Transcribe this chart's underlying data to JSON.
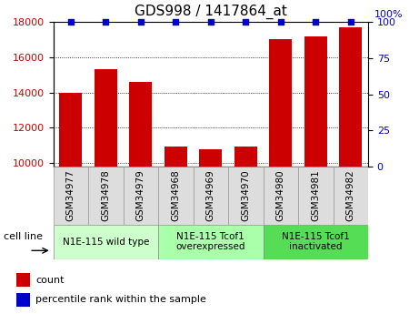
{
  "title": "GDS998 / 1417864_at",
  "samples": [
    "GSM34977",
    "GSM34978",
    "GSM34979",
    "GSM34968",
    "GSM34969",
    "GSM34970",
    "GSM34980",
    "GSM34981",
    "GSM34982"
  ],
  "counts": [
    14000,
    15300,
    14600,
    10950,
    10750,
    10950,
    17050,
    17200,
    17700
  ],
  "percentiles": [
    100,
    100,
    100,
    100,
    100,
    100,
    100,
    100,
    100
  ],
  "ylim_left": [
    9800,
    18000
  ],
  "ylim_right": [
    0,
    100
  ],
  "yticks_left": [
    10000,
    12000,
    14000,
    16000,
    18000
  ],
  "yticks_right": [
    0,
    25,
    50,
    75,
    100
  ],
  "bar_color": "#cc0000",
  "percentile_color": "#0000cc",
  "groups": [
    {
      "label": "N1E-115 wild type",
      "start": 0,
      "end": 3,
      "color": "#ccffcc"
    },
    {
      "label": "N1E-115 Tcof1\noverexpressed",
      "start": 3,
      "end": 6,
      "color": "#aaffaa"
    },
    {
      "label": "N1E-115 Tcof1\ninactivated",
      "start": 6,
      "end": 9,
      "color": "#55dd55"
    }
  ],
  "cell_line_label": "cell line",
  "legend_count_label": "count",
  "legend_percentile_label": "percentile rank within the sample",
  "tick_label_color_left": "#cc0000",
  "tick_label_color_right": "#0000cc",
  "title_fontsize": 11,
  "tick_fontsize": 8,
  "sample_fontsize": 7.5,
  "group_fontsize": 7.5,
  "legend_fontsize": 8,
  "right_axis_top_label": "100%"
}
